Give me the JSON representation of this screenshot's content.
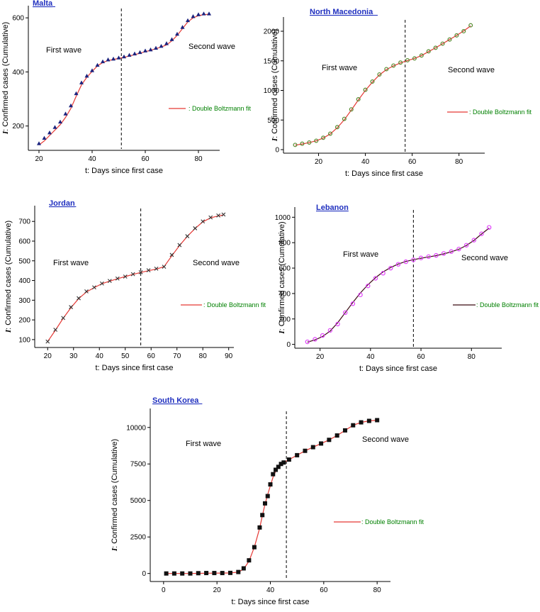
{
  "chart_data": [
    {
      "type": "scatter",
      "title": "Malta",
      "xlabel": "t: Days since first case",
      "ylabel_italic": "I",
      "ylabel": ": Confirmed cases (Cumulative)",
      "xlim": [
        16,
        88
      ],
      "ylim": [
        110,
        645
      ],
      "xticks": [
        20,
        40,
        60,
        80
      ],
      "yticks": [
        200,
        400,
        600
      ],
      "divider_x": 51,
      "annotations": [
        "First wave",
        "Second wave"
      ],
      "legend": ": Double Boltzmann fit",
      "marker": "triangle",
      "marker_color": "#1a237e",
      "fit_color": "#e53935",
      "x": [
        20,
        22,
        24,
        26,
        28,
        30,
        32,
        34,
        36,
        38,
        40,
        42,
        44,
        46,
        48,
        50,
        52,
        54,
        56,
        58,
        60,
        62,
        64,
        66,
        68,
        70,
        72,
        74,
        76,
        78,
        80,
        82,
        84
      ],
      "values": [
        135,
        155,
        175,
        195,
        215,
        245,
        275,
        320,
        360,
        385,
        405,
        425,
        438,
        445,
        448,
        452,
        456,
        462,
        467,
        472,
        478,
        482,
        488,
        495,
        505,
        520,
        540,
        565,
        590,
        605,
        612,
        615,
        615
      ],
      "series": [
        {
          "name": "Confirmed cases",
          "values": [
            135,
            155,
            175,
            195,
            215,
            245,
            275,
            320,
            360,
            385,
            405,
            425,
            438,
            445,
            448,
            452,
            456,
            462,
            467,
            472,
            478,
            482,
            488,
            495,
            505,
            520,
            540,
            565,
            590,
            605,
            612,
            615,
            615
          ]
        },
        {
          "name": "Double Boltzmann fit",
          "values": [
            130,
            145,
            165,
            185,
            205,
            232,
            265,
            310,
            352,
            380,
            402,
            422,
            435,
            442,
            446,
            450,
            454,
            459,
            464,
            469,
            475,
            480,
            486,
            492,
            500,
            515,
            535,
            560,
            585,
            600,
            608,
            612,
            613
          ]
        }
      ]
    },
    {
      "type": "scatter",
      "title": "North Macedonia",
      "xlabel": "t: Days since first case",
      "ylabel_italic": "I",
      "ylabel": ": Confirmed cases (Cumulative)",
      "xlim": [
        5,
        91
      ],
      "ylim": [
        -60,
        2240
      ],
      "xticks": [
        20,
        40,
        60,
        80
      ],
      "yticks": [
        0,
        500,
        1000,
        1500,
        2000
      ],
      "divider_x": 57,
      "annotations": [
        "First wave",
        "Second wave"
      ],
      "legend": ": Double Boltzmann fit",
      "marker": "circle",
      "marker_color": "#558b2f",
      "fit_color": "#e53935",
      "x": [
        10,
        13,
        16,
        19,
        22,
        25,
        28,
        31,
        34,
        37,
        40,
        43,
        46,
        49,
        52,
        55,
        58,
        61,
        64,
        67,
        70,
        73,
        76,
        79,
        82,
        85
      ],
      "values": [
        80,
        100,
        120,
        150,
        200,
        270,
        380,
        520,
        680,
        850,
        1010,
        1150,
        1270,
        1360,
        1420,
        1470,
        1510,
        1540,
        1590,
        1660,
        1720,
        1790,
        1860,
        1930,
        2000,
        2100
      ],
      "series": [
        {
          "name": "Confirmed cases",
          "values": [
            80,
            100,
            120,
            150,
            200,
            270,
            380,
            520,
            680,
            850,
            1010,
            1150,
            1270,
            1360,
            1420,
            1470,
            1510,
            1540,
            1590,
            1660,
            1720,
            1790,
            1860,
            1930,
            2000,
            2100
          ]
        },
        {
          "name": "Double Boltzmann fit",
          "values": [
            75,
            95,
            118,
            148,
            195,
            265,
            370,
            505,
            670,
            840,
            1000,
            1140,
            1262,
            1352,
            1415,
            1465,
            1505,
            1540,
            1590,
            1655,
            1720,
            1790,
            1860,
            1930,
            2005,
            2090
          ]
        }
      ]
    },
    {
      "type": "scatter",
      "title": "Jordan",
      "xlabel": "t: Days since first case",
      "ylabel_italic": "I",
      "ylabel": ": Confirmed cases (Cumulative)",
      "xlim": [
        15,
        92
      ],
      "ylim": [
        60,
        780
      ],
      "xticks": [
        20,
        30,
        40,
        50,
        60,
        70,
        80,
        90
      ],
      "yticks": [
        100,
        200,
        300,
        400,
        500,
        600,
        700
      ],
      "divider_x": 56,
      "annotations": [
        "First wave",
        "Second wave"
      ],
      "legend": ": Double Boltzmann fit",
      "marker": "cross",
      "marker_color": "#333333",
      "fit_color": "#e53935",
      "x": [
        20,
        23,
        26,
        29,
        32,
        35,
        38,
        41,
        44,
        47,
        50,
        53,
        56,
        59,
        62,
        65,
        68,
        71,
        74,
        77,
        80,
        83,
        86,
        88
      ],
      "values": [
        90,
        150,
        210,
        265,
        310,
        345,
        365,
        385,
        398,
        410,
        420,
        432,
        442,
        452,
        460,
        470,
        530,
        580,
        625,
        665,
        700,
        720,
        730,
        735
      ],
      "series": [
        {
          "name": "Confirmed cases",
          "values": [
            90,
            150,
            210,
            265,
            310,
            345,
            365,
            385,
            398,
            410,
            420,
            432,
            442,
            452,
            460,
            470,
            530,
            580,
            625,
            665,
            700,
            720,
            730,
            735
          ]
        },
        {
          "name": "Double Boltzmann fit",
          "values": [
            90,
            148,
            208,
            262,
            308,
            342,
            364,
            384,
            397,
            409,
            420,
            431,
            441,
            450,
            458,
            470,
            525,
            578,
            624,
            664,
            698,
            718,
            728,
            733
          ]
        }
      ]
    },
    {
      "type": "scatter",
      "title": "Lebanon",
      "xlabel": "t: Days since first case",
      "ylabel_italic": "I",
      "ylabel": ": Confirmed cases (Cumulative)",
      "xlim": [
        10,
        92
      ],
      "ylim": [
        -30,
        1080
      ],
      "xticks": [
        20,
        40,
        60,
        80
      ],
      "yticks": [
        0,
        200,
        400,
        600,
        800,
        1000
      ],
      "divider_x": 57,
      "annotations": [
        "First wave",
        "Second wave"
      ],
      "legend": ": Double Boltzmann fit",
      "marker": "circle-open",
      "marker_color": "#e040fb",
      "fit_color": "#3a0a12",
      "x": [
        15,
        18,
        21,
        24,
        27,
        30,
        33,
        36,
        39,
        42,
        45,
        48,
        51,
        54,
        57,
        60,
        63,
        66,
        69,
        72,
        75,
        78,
        81,
        84,
        87
      ],
      "values": [
        20,
        40,
        70,
        110,
        160,
        250,
        320,
        390,
        460,
        520,
        560,
        600,
        630,
        650,
        665,
        680,
        690,
        700,
        715,
        730,
        750,
        780,
        820,
        870,
        920
      ],
      "series": [
        {
          "name": "Confirmed cases",
          "values": [
            20,
            40,
            70,
            110,
            160,
            250,
            320,
            390,
            460,
            520,
            560,
            600,
            630,
            650,
            665,
            680,
            690,
            700,
            715,
            730,
            750,
            780,
            820,
            870,
            920
          ]
        },
        {
          "name": "Double Boltzmann fit",
          "values": [
            18,
            35,
            62,
            105,
            170,
            250,
            330,
            405,
            470,
            525,
            570,
            605,
            632,
            652,
            666,
            678,
            688,
            698,
            712,
            728,
            748,
            778,
            818,
            868,
            915
          ]
        }
      ]
    },
    {
      "type": "scatter",
      "title": "South Korea",
      "xlabel": "t: Days since first case",
      "ylabel_italic": "I",
      "ylabel": ": Confirmed cases (Cumulative)",
      "xlim": [
        -5,
        85
      ],
      "ylim": [
        -550,
        11300
      ],
      "xticks": [
        0,
        20,
        40,
        60,
        80
      ],
      "yticks": [
        0,
        2500,
        5000,
        7500,
        10000
      ],
      "divider_x": 46,
      "annotations": [
        "First wave",
        "Second wave"
      ],
      "legend": ": Double Boltzmann fit",
      "marker": "square",
      "marker_color": "#111111",
      "fit_color": "#e53935",
      "x": [
        1,
        4,
        7,
        10,
        13,
        16,
        19,
        22,
        25,
        28,
        30,
        32,
        34,
        36,
        37,
        38,
        39,
        40,
        41,
        42,
        43,
        44,
        45,
        47,
        50,
        53,
        56,
        59,
        62,
        65,
        68,
        71,
        74,
        77,
        80
      ],
      "values": [
        0,
        0,
        0,
        0,
        20,
        30,
        30,
        30,
        40,
        100,
        350,
        900,
        1800,
        3150,
        4000,
        4800,
        5300,
        6100,
        6800,
        7100,
        7300,
        7500,
        7600,
        7800,
        8100,
        8400,
        8650,
        8900,
        9150,
        9450,
        9800,
        10150,
        10350,
        10450,
        10500
      ],
      "series": [
        {
          "name": "Confirmed cases",
          "values": [
            0,
            0,
            0,
            0,
            20,
            30,
            30,
            30,
            40,
            100,
            350,
            900,
            1800,
            3150,
            4000,
            4800,
            5300,
            6100,
            6800,
            7100,
            7300,
            7500,
            7600,
            7800,
            8100,
            8400,
            8650,
            8900,
            9150,
            9450,
            9800,
            10150,
            10350,
            10450,
            10500
          ]
        },
        {
          "name": "Double Boltzmann fit",
          "values": [
            0,
            0,
            0,
            0,
            10,
            20,
            25,
            30,
            40,
            90,
            300,
            850,
            1800,
            3100,
            3950,
            4750,
            5400,
            6000,
            6600,
            7000,
            7250,
            7450,
            7600,
            7800,
            8100,
            8400,
            8650,
            8900,
            9150,
            9450,
            9800,
            10150,
            10350,
            10450,
            10500
          ]
        }
      ]
    }
  ]
}
